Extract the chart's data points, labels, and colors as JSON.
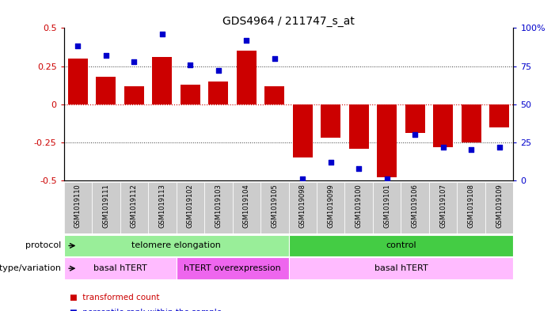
{
  "title": "GDS4964 / 211747_s_at",
  "samples": [
    "GSM1019110",
    "GSM1019111",
    "GSM1019112",
    "GSM1019113",
    "GSM1019102",
    "GSM1019103",
    "GSM1019104",
    "GSM1019105",
    "GSM1019098",
    "GSM1019099",
    "GSM1019100",
    "GSM1019101",
    "GSM1019106",
    "GSM1019107",
    "GSM1019108",
    "GSM1019109"
  ],
  "bar_values": [
    0.3,
    0.18,
    0.12,
    0.31,
    0.13,
    0.15,
    0.35,
    0.12,
    -0.35,
    -0.22,
    -0.29,
    -0.48,
    -0.19,
    -0.28,
    -0.25,
    -0.15
  ],
  "percentile_values": [
    88,
    82,
    78,
    96,
    76,
    72,
    92,
    80,
    1,
    12,
    8,
    1,
    30,
    22,
    20,
    22
  ],
  "ylim": [
    -0.5,
    0.5
  ],
  "yticks": [
    -0.5,
    -0.25,
    0.0,
    0.25,
    0.5
  ],
  "right_yticks": [
    0,
    25,
    50,
    75,
    100
  ],
  "right_ytick_labels": [
    "0",
    "25",
    "50",
    "75",
    "100%"
  ],
  "bar_color": "#cc0000",
  "dot_color": "#0000cc",
  "protocol_groups": [
    {
      "label": "telomere elongation",
      "start": 0,
      "end": 8,
      "color": "#99ee99"
    },
    {
      "label": "control",
      "start": 8,
      "end": 16,
      "color": "#44cc44"
    }
  ],
  "genotype_groups": [
    {
      "label": "basal hTERT",
      "start": 0,
      "end": 4,
      "color": "#ffbbff"
    },
    {
      "label": "hTERT overexpression",
      "start": 4,
      "end": 8,
      "color": "#ee66ee"
    },
    {
      "label": "basal hTERT",
      "start": 8,
      "end": 16,
      "color": "#ffbbff"
    }
  ],
  "bar_color_legend": "#cc0000",
  "dot_color_legend": "#0000cc",
  "sample_bg_color": "#cccccc",
  "zero_line_color": "#cc0000",
  "dotted_line_color": "#333333",
  "title_fontsize": 10,
  "tick_fontsize": 8,
  "sample_fontsize": 6,
  "annot_fontsize": 8
}
